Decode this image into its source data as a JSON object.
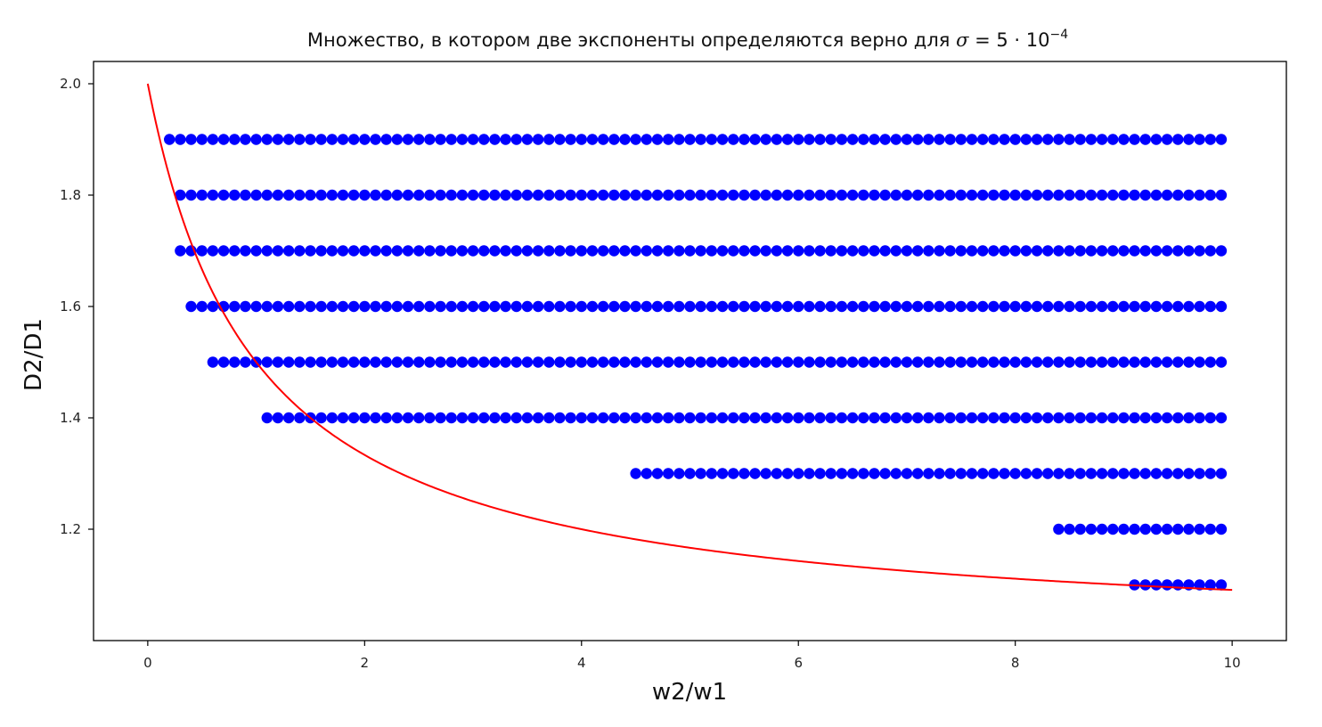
{
  "chart_data": {
    "type": "scatter",
    "title": {
      "text": "Множество, в котором две экспоненты определяются верно для ",
      "sigma": "σ",
      "rest": " = 5 · 10",
      "exponent": "−4"
    },
    "xlabel": "w2/w1",
    "ylabel": "D2/D1",
    "xlim": [
      -0.5,
      10.5
    ],
    "ylim": [
      1.0,
      2.04
    ],
    "xticks": [
      0,
      2,
      4,
      6,
      8,
      10
    ],
    "yticks": [
      1.2,
      1.4,
      1.6,
      1.8,
      2.0
    ],
    "xtick_labels": [
      "0",
      "2",
      "4",
      "6",
      "8",
      "10"
    ],
    "ytick_labels": [
      "1.2",
      "1.4",
      "1.6",
      "1.8",
      "2.0"
    ],
    "grid": false,
    "series": [
      {
        "kind": "scatter",
        "color": "#0000ff",
        "rows": [
          {
            "y": 1.9,
            "x_start": 0.2,
            "x_end": 9.9,
            "step": 0.1
          },
          {
            "y": 1.8,
            "x_start": 0.3,
            "x_end": 9.9,
            "step": 0.1
          },
          {
            "y": 1.7,
            "x_start": 0.3,
            "x_end": 9.9,
            "step": 0.1
          },
          {
            "y": 1.6,
            "x_start": 0.4,
            "x_end": 9.9,
            "step": 0.1
          },
          {
            "y": 1.5,
            "x_start": 0.6,
            "x_end": 9.9,
            "step": 0.1
          },
          {
            "y": 1.4,
            "x_start": 1.1,
            "x_end": 9.9,
            "step": 0.1
          },
          {
            "y": 1.3,
            "x_start": 4.5,
            "x_end": 9.9,
            "step": 0.1
          },
          {
            "y": 1.2,
            "x_start": 8.4,
            "x_end": 9.9,
            "step": 0.1
          },
          {
            "y": 1.1,
            "x_start": 9.1,
            "x_end": 9.9,
            "step": 0.1
          }
        ]
      },
      {
        "kind": "line",
        "color": "#ff0000",
        "formula": "1 + 1/(1 + x)",
        "x_range": [
          0,
          10
        ]
      }
    ]
  }
}
